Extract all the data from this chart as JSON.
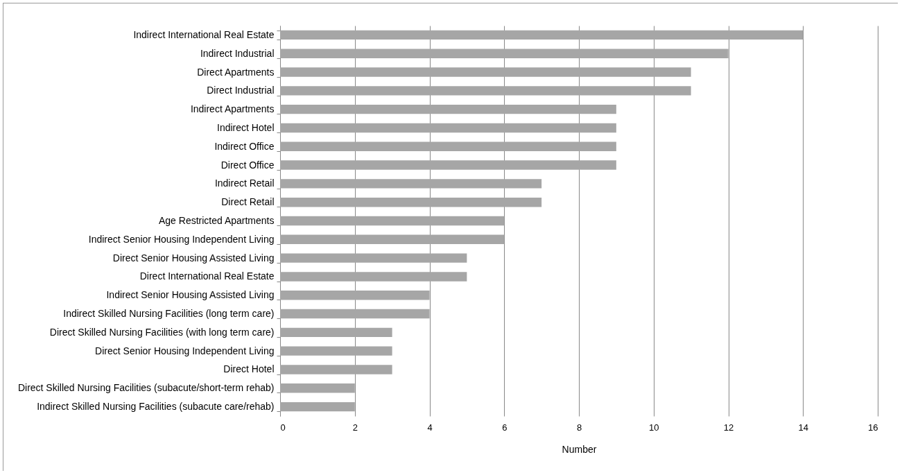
{
  "chart_data": {
    "type": "bar",
    "orientation": "horizontal",
    "xlabel": "Number",
    "categories": [
      "Indirect International Real Estate",
      "Indirect Industrial",
      "Direct Apartments",
      "Direct Industrial",
      "Indirect Apartments",
      "Indirect Hotel",
      "Indirect Office",
      "Direct Office",
      "Indirect Retail",
      "Direct Retail",
      "Age Restricted Apartments",
      "Indirect Senior Housing Independent Living",
      "Direct Senior Housing Assisted Living",
      "Direct International Real Estate",
      "Indirect Senior Housing Assisted Living",
      "Indirect Skilled Nursing Facilities (long term care)",
      "Direct Skilled Nursing Facilities (with long term care)",
      "Direct Senior Housing Independent Living",
      "Direct Hotel",
      "Direct Skilled Nursing Facilities (subacute/short-term rehab)",
      "Indirect Skilled Nursing Facilities (subacute care/rehab)"
    ],
    "values": [
      14,
      12,
      11,
      11,
      9,
      9,
      9,
      9,
      7,
      7,
      6,
      6,
      5,
      5,
      4,
      4,
      3,
      3,
      3,
      2,
      2
    ],
    "color": "#a6a6a6",
    "xlim": [
      0,
      16
    ],
    "xticks": [
      0,
      2,
      4,
      6,
      8,
      10,
      12,
      14,
      16
    ],
    "grid": "x"
  }
}
